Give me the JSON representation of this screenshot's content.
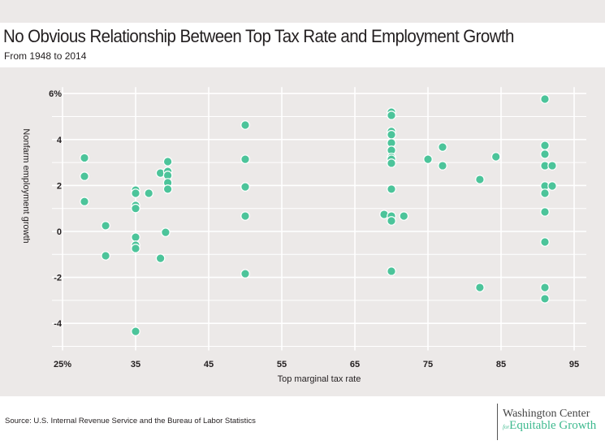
{
  "title": "No Obvious Relationship Between Top Tax Rate and Employment Growth",
  "subtitle": "From 1948 to 2014",
  "source": "Source: U.S. Internal Revenue Service and the Bureau of Labor Statistics",
  "logo": {
    "line1": "Washington Center",
    "for": "for",
    "line2": "Equitable Growth"
  },
  "colors": {
    "point": "#4cc49a",
    "point_stroke": "#ffffff",
    "grid": "#ffffff",
    "background": "#ece9e8"
  },
  "chart_data": {
    "type": "scatter",
    "title": "No Obvious Relationship Between Top Tax Rate and Employment Growth",
    "subtitle": "From 1948 to 2014",
    "xlabel": "Top marginal tax rate",
    "ylabel": "Nonfarm employment growth",
    "xlim": [
      25,
      95
    ],
    "ylim": [
      -5,
      6
    ],
    "xticks": [
      25,
      35,
      45,
      55,
      65,
      75,
      85,
      95
    ],
    "xtick_labels": [
      "25%",
      "35",
      "45",
      "55",
      "65",
      "75",
      "85",
      "95"
    ],
    "yticks": [
      6,
      4,
      2,
      0,
      -2,
      -4
    ],
    "ytick_labels": [
      "6%",
      "4",
      "2",
      "0",
      "-2",
      "-4"
    ],
    "grid": true,
    "points": [
      {
        "x": 28,
        "y": 3.2
      },
      {
        "x": 28,
        "y": 2.4
      },
      {
        "x": 28,
        "y": 1.3
      },
      {
        "x": 30.9,
        "y": 0.25
      },
      {
        "x": 30.9,
        "y": -1.06
      },
      {
        "x": 35,
        "y": 1.8
      },
      {
        "x": 35,
        "y": 1.66
      },
      {
        "x": 35,
        "y": 1.13
      },
      {
        "x": 35,
        "y": 1.0
      },
      {
        "x": 35,
        "y": -0.25
      },
      {
        "x": 35,
        "y": -0.6
      },
      {
        "x": 35,
        "y": -0.74
      },
      {
        "x": 35,
        "y": -4.35
      },
      {
        "x": 36.8,
        "y": 1.66
      },
      {
        "x": 38.4,
        "y": 2.54
      },
      {
        "x": 38.4,
        "y": -1.17
      },
      {
        "x": 39.1,
        "y": -0.04
      },
      {
        "x": 39.4,
        "y": 3.04
      },
      {
        "x": 39.4,
        "y": 2.61
      },
      {
        "x": 39.4,
        "y": 2.44
      },
      {
        "x": 39.4,
        "y": 2.12
      },
      {
        "x": 39.4,
        "y": 1.84
      },
      {
        "x": 50,
        "y": 4.63
      },
      {
        "x": 50,
        "y": 3.14
      },
      {
        "x": 50,
        "y": 1.94
      },
      {
        "x": 50,
        "y": 0.67
      },
      {
        "x": 50,
        "y": -1.84
      },
      {
        "x": 69,
        "y": 0.74
      },
      {
        "x": 70,
        "y": 5.19
      },
      {
        "x": 70,
        "y": 5.05
      },
      {
        "x": 70,
        "y": 4.35
      },
      {
        "x": 70,
        "y": 4.21
      },
      {
        "x": 70,
        "y": 3.85
      },
      {
        "x": 70,
        "y": 3.53
      },
      {
        "x": 70,
        "y": 3.22
      },
      {
        "x": 70,
        "y": 3.14
      },
      {
        "x": 70,
        "y": 2.97
      },
      {
        "x": 70,
        "y": 1.84
      },
      {
        "x": 70,
        "y": 0.67
      },
      {
        "x": 70,
        "y": 0.46
      },
      {
        "x": 70,
        "y": -1.73
      },
      {
        "x": 71.7,
        "y": 0.67
      },
      {
        "x": 75,
        "y": 3.14
      },
      {
        "x": 77,
        "y": 3.67
      },
      {
        "x": 77,
        "y": 2.86
      },
      {
        "x": 82.1,
        "y": 2.26
      },
      {
        "x": 82.1,
        "y": -2.44
      },
      {
        "x": 84.3,
        "y": 3.25
      },
      {
        "x": 91,
        "y": 5.76
      },
      {
        "x": 91,
        "y": 3.74
      },
      {
        "x": 91,
        "y": 3.36
      },
      {
        "x": 91,
        "y": 2.86
      },
      {
        "x": 91,
        "y": 1.98
      },
      {
        "x": 91,
        "y": 1.66
      },
      {
        "x": 91,
        "y": 0.85
      },
      {
        "x": 91,
        "y": -0.46
      },
      {
        "x": 91,
        "y": -2.44
      },
      {
        "x": 91,
        "y": -2.93
      },
      {
        "x": 92,
        "y": 2.86
      },
      {
        "x": 92,
        "y": 1.98
      }
    ]
  }
}
